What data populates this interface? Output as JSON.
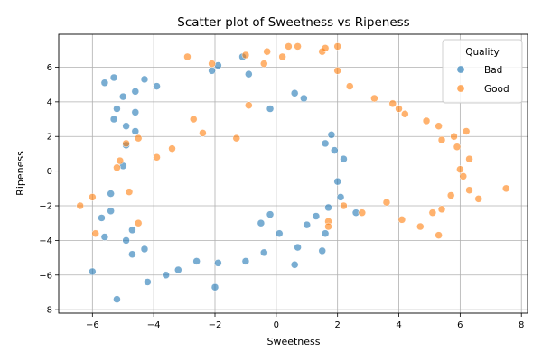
{
  "chart_data": {
    "type": "scatter",
    "title": "Scatter plot of Sweetness vs Ripeness",
    "xlabel": "Sweetness",
    "ylabel": "Ripeness",
    "xlim": [
      -7.1,
      8.2
    ],
    "ylim": [
      -8.2,
      7.9
    ],
    "x_ticks": [
      -6,
      -4,
      -2,
      0,
      2,
      4,
      6,
      8
    ],
    "y_ticks": [
      -8,
      -6,
      -4,
      -2,
      0,
      2,
      4,
      6
    ],
    "grid": true,
    "legend": {
      "title": "Quality",
      "placement": "top-right"
    },
    "series": [
      {
        "name": "Bad",
        "color": "#1f77b4",
        "points": [
          [
            -5.2,
            -7.4
          ],
          [
            -6.0,
            -5.8
          ],
          [
            -2.0,
            -6.7
          ],
          [
            -4.2,
            -6.4
          ],
          [
            -3.6,
            -6.0
          ],
          [
            -5.3,
            5.4
          ],
          [
            -5.6,
            5.1
          ],
          [
            -4.6,
            4.6
          ],
          [
            -5.0,
            4.3
          ],
          [
            -1.1,
            6.6
          ],
          [
            -1.9,
            6.1
          ],
          [
            -3.9,
            4.9
          ],
          [
            -0.9,
            5.6
          ],
          [
            -4.3,
            5.3
          ],
          [
            -2.1,
            5.8
          ],
          [
            0.6,
            4.5
          ],
          [
            0.9,
            4.2
          ],
          [
            -0.2,
            3.6
          ],
          [
            1.6,
            1.6
          ],
          [
            1.8,
            2.1
          ],
          [
            1.5,
            -4.6
          ],
          [
            1.6,
            -3.6
          ],
          [
            1.0,
            -3.1
          ],
          [
            0.7,
            -4.4
          ],
          [
            0.6,
            -5.4
          ],
          [
            -1.0,
            -5.2
          ],
          [
            -0.4,
            -4.7
          ],
          [
            -2.6,
            -5.2
          ],
          [
            -3.2,
            -5.7
          ],
          [
            -1.9,
            -5.3
          ],
          [
            -4.7,
            -4.8
          ],
          [
            -4.3,
            -4.5
          ],
          [
            -5.6,
            -3.8
          ],
          [
            -5.7,
            -2.7
          ],
          [
            -5.4,
            -2.3
          ],
          [
            -5.4,
            -1.3
          ],
          [
            -5.0,
            0.3
          ],
          [
            -4.9,
            1.5
          ],
          [
            -4.6,
            2.3
          ],
          [
            -4.9,
            2.6
          ],
          [
            -5.3,
            3.0
          ],
          [
            -5.2,
            3.6
          ],
          [
            -4.6,
            3.4
          ],
          [
            -4.7,
            -3.4
          ],
          [
            -4.9,
            -4.0
          ],
          [
            0.1,
            -3.6
          ],
          [
            -0.5,
            -3.0
          ],
          [
            -0.2,
            -2.5
          ],
          [
            2.6,
            -2.4
          ],
          [
            2.1,
            -1.5
          ],
          [
            1.3,
            -2.6
          ],
          [
            1.7,
            -2.1
          ],
          [
            2.0,
            -0.6
          ],
          [
            2.2,
            0.7
          ],
          [
            1.9,
            1.2
          ]
        ]
      },
      {
        "name": "Good",
        "color": "#ff7f0e",
        "points": [
          [
            -6.4,
            -2.0
          ],
          [
            -6.0,
            -1.5
          ],
          [
            -5.9,
            -3.6
          ],
          [
            -5.1,
            0.6
          ],
          [
            -5.2,
            0.2
          ],
          [
            -4.9,
            1.6
          ],
          [
            -4.5,
            1.9
          ],
          [
            -4.8,
            -1.2
          ],
          [
            -4.5,
            -3.0
          ],
          [
            -3.9,
            0.8
          ],
          [
            -2.9,
            6.6
          ],
          [
            -2.1,
            6.2
          ],
          [
            -1.0,
            6.7
          ],
          [
            -0.4,
            6.2
          ],
          [
            -0.3,
            6.9
          ],
          [
            0.2,
            6.6
          ],
          [
            0.4,
            7.2
          ],
          [
            0.7,
            7.2
          ],
          [
            1.5,
            6.9
          ],
          [
            1.6,
            7.1
          ],
          [
            2.0,
            7.2
          ],
          [
            2.0,
            5.8
          ],
          [
            2.4,
            4.9
          ],
          [
            3.2,
            4.2
          ],
          [
            3.8,
            3.9
          ],
          [
            4.0,
            3.6
          ],
          [
            4.2,
            3.3
          ],
          [
            4.9,
            2.9
          ],
          [
            5.3,
            2.6
          ],
          [
            5.4,
            1.8
          ],
          [
            5.8,
            2.0
          ],
          [
            5.9,
            1.4
          ],
          [
            6.0,
            0.1
          ],
          [
            6.1,
            -0.3
          ],
          [
            6.2,
            2.3
          ],
          [
            6.3,
            0.7
          ],
          [
            6.6,
            -1.6
          ],
          [
            6.3,
            -1.1
          ],
          [
            7.5,
            -1.0
          ],
          [
            5.7,
            -1.4
          ],
          [
            5.4,
            -2.2
          ],
          [
            5.1,
            -2.4
          ],
          [
            5.3,
            -3.7
          ],
          [
            4.7,
            -3.2
          ],
          [
            4.1,
            -2.8
          ],
          [
            3.6,
            -1.8
          ],
          [
            2.8,
            -2.4
          ],
          [
            2.2,
            -2.0
          ],
          [
            1.7,
            -2.9
          ],
          [
            1.7,
            -3.2
          ],
          [
            -2.4,
            2.2
          ],
          [
            -3.4,
            1.3
          ],
          [
            -2.7,
            3.0
          ],
          [
            -1.3,
            1.9
          ],
          [
            -0.9,
            3.8
          ]
        ]
      }
    ]
  }
}
